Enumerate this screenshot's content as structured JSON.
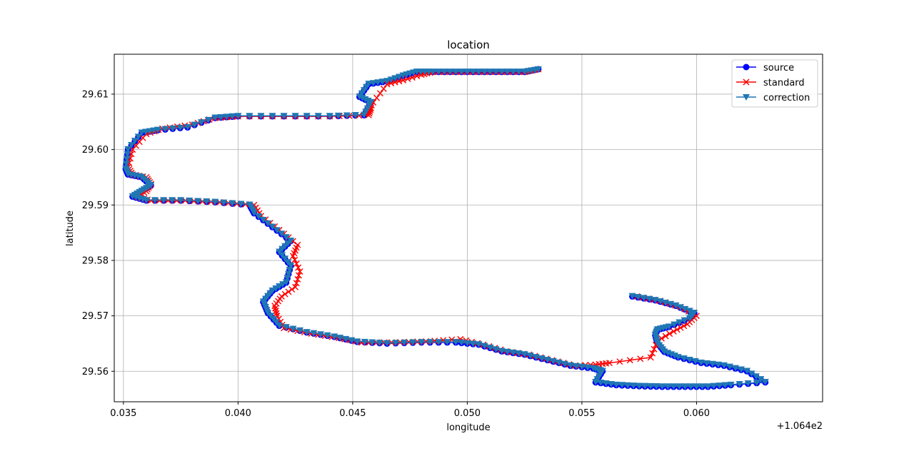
{
  "chart_data": {
    "type": "line",
    "title": "location",
    "xlabel": "longitude",
    "ylabel": "latitude",
    "x_offset_label": "+1.064e2",
    "xlim": [
      0.0346,
      0.0655
    ],
    "ylim": [
      29.5545,
      29.6172
    ],
    "xticks": [
      0.035,
      0.04,
      0.045,
      0.05,
      0.055,
      0.06
    ],
    "xtick_labels": [
      "0.035",
      "0.040",
      "0.045",
      "0.050",
      "0.055",
      "0.060"
    ],
    "yticks": [
      29.56,
      29.57,
      29.58,
      29.59,
      29.6,
      29.61
    ],
    "ytick_labels": [
      "29.56",
      "29.57",
      "29.58",
      "29.59",
      "29.60",
      "29.61"
    ],
    "grid": true,
    "legend_position": "top-right",
    "series": [
      {
        "name": "source",
        "color": "#0000ff",
        "marker": "circle",
        "x": [
          0.0531,
          0.0525,
          0.0515,
          0.0505,
          0.0495,
          0.0485,
          0.0478,
          0.0472,
          0.0465,
          0.0457,
          0.0453,
          0.0458,
          0.0455,
          0.044,
          0.042,
          0.04,
          0.039,
          0.0378,
          0.0365,
          0.0358,
          0.0352,
          0.0351,
          0.0352,
          0.0358,
          0.0362,
          0.0358,
          0.0354,
          0.036,
          0.0375,
          0.039,
          0.0405,
          0.0407,
          0.0415,
          0.0423,
          0.0418,
          0.0423,
          0.0421,
          0.0415,
          0.0411,
          0.0413,
          0.0418,
          0.043,
          0.0442,
          0.0452,
          0.0465,
          0.048,
          0.0495,
          0.0505,
          0.0515,
          0.0525,
          0.0535,
          0.0545,
          0.0555,
          0.0559,
          0.0556,
          0.0565,
          0.0575,
          0.0585,
          0.0595,
          0.0605,
          0.0615,
          0.063,
          0.0622,
          0.0612,
          0.0602,
          0.0592,
          0.0586,
          0.0583,
          0.0582,
          0.0583,
          0.0588,
          0.0597,
          0.0599,
          0.0591,
          0.0582,
          0.0572
        ],
        "y": [
          29.6145,
          29.614,
          29.614,
          29.614,
          29.614,
          29.614,
          29.614,
          29.6133,
          29.6123,
          29.6118,
          29.6095,
          29.6085,
          29.6062,
          29.606,
          29.606,
          29.606,
          29.6057,
          29.604,
          29.6035,
          29.603,
          29.6,
          29.5965,
          29.5955,
          29.595,
          29.5935,
          29.5925,
          29.5915,
          29.5908,
          29.5908,
          29.5905,
          29.59,
          29.5885,
          29.586,
          29.5835,
          29.5815,
          29.579,
          29.576,
          29.5745,
          29.5725,
          29.5705,
          29.5682,
          29.567,
          29.5662,
          29.5653,
          29.565,
          29.5652,
          29.5652,
          29.5648,
          29.5636,
          29.563,
          29.562,
          29.561,
          29.5605,
          29.56,
          29.558,
          29.5575,
          29.5573,
          29.5572,
          29.5572,
          29.5572,
          29.5575,
          29.558,
          29.56,
          29.561,
          29.5615,
          29.5625,
          29.5635,
          29.565,
          29.5665,
          29.5675,
          29.568,
          29.5695,
          29.5705,
          29.5718,
          29.5728,
          29.5735
        ]
      },
      {
        "name": "standard",
        "color": "#ff0000",
        "marker": "x",
        "x": [
          0.0531,
          0.0525,
          0.0515,
          0.0505,
          0.0495,
          0.0485,
          0.048,
          0.0472,
          0.0465,
          0.0459,
          0.0456,
          0.0458,
          0.0457,
          0.044,
          0.042,
          0.04,
          0.039,
          0.038,
          0.0367,
          0.036,
          0.0354,
          0.0352,
          0.0354,
          0.036,
          0.0362,
          0.036,
          0.0356,
          0.0362,
          0.0377,
          0.0392,
          0.0407,
          0.041,
          0.0418,
          0.0426,
          0.0424,
          0.0427,
          0.0425,
          0.0419,
          0.0416,
          0.0417,
          0.042,
          0.0432,
          0.0444,
          0.0454,
          0.0467,
          0.0482,
          0.0497,
          0.0507,
          0.0517,
          0.0527,
          0.0537,
          0.0547,
          0.0556,
          0.0562,
          0.058,
          0.0583,
          0.059,
          0.0596,
          0.06,
          0.0593,
          0.0584,
          0.0574
        ],
        "y": [
          29.6145,
          29.614,
          29.614,
          29.614,
          29.614,
          29.614,
          29.6135,
          29.6125,
          29.6118,
          29.6085,
          29.6065,
          29.6075,
          29.6062,
          29.606,
          29.606,
          29.606,
          29.6057,
          29.6045,
          29.6038,
          29.6028,
          29.6,
          29.5968,
          29.5955,
          29.595,
          29.5938,
          29.5925,
          29.5915,
          29.5908,
          29.5908,
          29.5905,
          29.59,
          29.588,
          29.5855,
          29.5828,
          29.5808,
          29.578,
          29.5752,
          29.5735,
          29.5718,
          29.57,
          29.5678,
          29.5668,
          29.566,
          29.5652,
          29.5652,
          29.5654,
          29.5658,
          29.5648,
          29.5636,
          29.563,
          29.562,
          29.561,
          29.5612,
          29.5615,
          29.5625,
          29.5655,
          29.5672,
          29.5685,
          29.57,
          29.5716,
          29.5727,
          29.5735
        ]
      },
      {
        "name": "correction",
        "color": "#1f77b4",
        "marker": "triangle-down",
        "x": [
          0.0531,
          0.0525,
          0.0515,
          0.0505,
          0.0495,
          0.0485,
          0.0478,
          0.0472,
          0.0465,
          0.0457,
          0.0453,
          0.0458,
          0.0455,
          0.044,
          0.042,
          0.04,
          0.039,
          0.0378,
          0.0365,
          0.0358,
          0.0352,
          0.0351,
          0.0352,
          0.0358,
          0.0362,
          0.0358,
          0.0354,
          0.036,
          0.0375,
          0.039,
          0.0405,
          0.0407,
          0.0415,
          0.0423,
          0.0418,
          0.0423,
          0.0421,
          0.0415,
          0.0411,
          0.0413,
          0.0418,
          0.043,
          0.0442,
          0.0452,
          0.0465,
          0.048,
          0.0495,
          0.0505,
          0.0515,
          0.0525,
          0.0535,
          0.0545,
          0.0555,
          0.0559,
          0.0556,
          0.0565,
          0.0575,
          0.0585,
          0.0595,
          0.0605,
          0.0615,
          0.063,
          0.0622,
          0.0612,
          0.0602,
          0.0592,
          0.0586,
          0.0583,
          0.0582,
          0.0583,
          0.0588,
          0.0597,
          0.0599,
          0.0591,
          0.0582,
          0.0572
        ],
        "y": [
          29.6145,
          29.6141,
          29.6141,
          29.6141,
          29.6141,
          29.6141,
          29.6141,
          29.6134,
          29.6124,
          29.6119,
          29.6096,
          29.6086,
          29.6063,
          29.6061,
          29.6061,
          29.6061,
          29.6058,
          29.6041,
          29.6036,
          29.6031,
          29.6001,
          29.5966,
          29.5956,
          29.5951,
          29.5936,
          29.5926,
          29.5916,
          29.5909,
          29.5909,
          29.5906,
          29.5901,
          29.5886,
          29.5861,
          29.5836,
          29.5816,
          29.5791,
          29.5761,
          29.5746,
          29.5726,
          29.5706,
          29.5683,
          29.5671,
          29.5663,
          29.5654,
          29.5651,
          29.5653,
          29.5653,
          29.5649,
          29.5637,
          29.5631,
          29.5621,
          29.5611,
          29.5606,
          29.5601,
          29.5581,
          29.5576,
          29.5574,
          29.5573,
          29.5573,
          29.5573,
          29.5576,
          29.5581,
          29.5601,
          29.5611,
          29.5616,
          29.5626,
          29.5636,
          29.5651,
          29.5666,
          29.5676,
          29.5681,
          29.5696,
          29.5706,
          29.5719,
          29.5729,
          29.5736
        ]
      }
    ]
  }
}
